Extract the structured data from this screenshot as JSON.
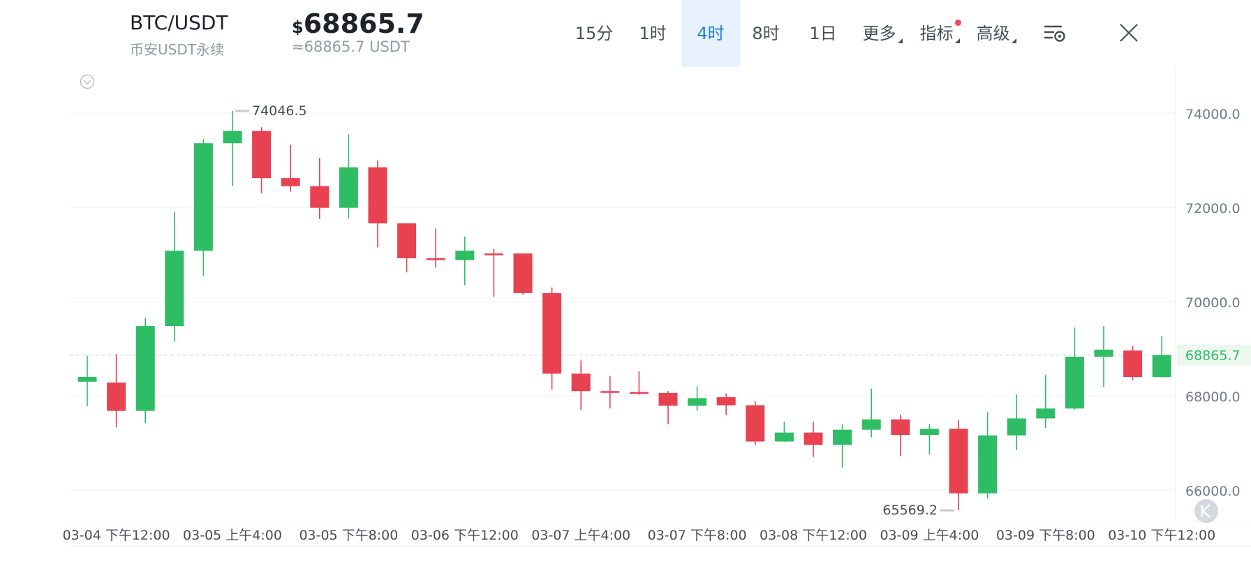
{
  "header": {
    "pair": "BTC/USDT",
    "market": "币安USDT永续",
    "price_currency": "$",
    "price": "68865.7",
    "converted": "≈68865.7 USDT"
  },
  "timeframes": [
    {
      "label": "15分",
      "active": false,
      "dropdown": false
    },
    {
      "label": "1时",
      "active": false,
      "dropdown": false
    },
    {
      "label": "4时",
      "active": true,
      "dropdown": false
    },
    {
      "label": "8时",
      "active": false,
      "dropdown": false
    },
    {
      "label": "1日",
      "active": false,
      "dropdown": false
    },
    {
      "label": "更多",
      "active": false,
      "dropdown": true
    },
    {
      "label": "指标",
      "active": false,
      "dropdown": true,
      "badge": true
    },
    {
      "label": "高级",
      "active": false,
      "dropdown": true
    }
  ],
  "icons": {
    "settings": "settings-list-icon",
    "close": "close-icon",
    "collapse": "chevron-down-circle-icon",
    "logo": "k-logo-icon"
  },
  "colors": {
    "up": "#2ebd65",
    "down": "#e84150",
    "accent": "#1e7ee5",
    "last_price": "#2ebd65"
  },
  "chart_data": {
    "type": "candlestick",
    "interval": "4时",
    "y_ticks": [
      "74000.0",
      "72000.0",
      "70000.0",
      "68000.0",
      "66000.0"
    ],
    "ylim": [
      65300,
      74900
    ],
    "x_labels": [
      "03-04 下午12:00",
      "03-05 上午4:00",
      "03-05 下午8:00",
      "03-06 下午12:00",
      "03-07 上午4:00",
      "03-07 下午8:00",
      "03-08 下午12:00",
      "03-09 上午4:00",
      "03-09 下午8:00",
      "03-10 下午12:00"
    ],
    "x_label_candle_index": [
      1,
      5,
      9,
      13,
      17,
      21,
      25,
      29,
      33,
      37
    ],
    "last_price": "68865.7",
    "high_label": "74046.5",
    "low_label": "65569.2",
    "high_index": 5,
    "low_index": 30,
    "candles": [
      {
        "o": 68300,
        "h": 68850,
        "l": 67780,
        "c": 68400
      },
      {
        "o": 68280,
        "h": 68880,
        "l": 67330,
        "c": 67680
      },
      {
        "o": 67680,
        "h": 69650,
        "l": 67420,
        "c": 69480
      },
      {
        "o": 69480,
        "h": 71900,
        "l": 69150,
        "c": 71080
      },
      {
        "o": 71080,
        "h": 73450,
        "l": 70550,
        "c": 73360
      },
      {
        "o": 73360,
        "h": 74046.5,
        "l": 72450,
        "c": 73620
      },
      {
        "o": 73620,
        "h": 73700,
        "l": 72300,
        "c": 72620
      },
      {
        "o": 72620,
        "h": 73330,
        "l": 72330,
        "c": 72450
      },
      {
        "o": 72450,
        "h": 73050,
        "l": 71750,
        "c": 71990
      },
      {
        "o": 71990,
        "h": 73550,
        "l": 71770,
        "c": 72850
      },
      {
        "o": 72850,
        "h": 73000,
        "l": 71150,
        "c": 71660
      },
      {
        "o": 71660,
        "h": 71660,
        "l": 70620,
        "c": 70920
      },
      {
        "o": 70920,
        "h": 71550,
        "l": 70720,
        "c": 70880
      },
      {
        "o": 70880,
        "h": 71380,
        "l": 70350,
        "c": 71080
      },
      {
        "o": 71020,
        "h": 71120,
        "l": 70100,
        "c": 71000
      },
      {
        "o": 71020,
        "h": 71020,
        "l": 70150,
        "c": 70180
      },
      {
        "o": 70180,
        "h": 70300,
        "l": 68130,
        "c": 68470
      },
      {
        "o": 68470,
        "h": 68750,
        "l": 67700,
        "c": 68100
      },
      {
        "o": 68100,
        "h": 68420,
        "l": 67730,
        "c": 68080
      },
      {
        "o": 68080,
        "h": 68520,
        "l": 68020,
        "c": 68060
      },
      {
        "o": 68060,
        "h": 68100,
        "l": 67400,
        "c": 67790
      },
      {
        "o": 67790,
        "h": 68200,
        "l": 67680,
        "c": 67950
      },
      {
        "o": 67970,
        "h": 68050,
        "l": 67590,
        "c": 67800
      },
      {
        "o": 67800,
        "h": 67880,
        "l": 66960,
        "c": 67030
      },
      {
        "o": 67030,
        "h": 67450,
        "l": 67020,
        "c": 67220
      },
      {
        "o": 67220,
        "h": 67450,
        "l": 66700,
        "c": 66960
      },
      {
        "o": 66960,
        "h": 67400,
        "l": 66480,
        "c": 67280
      },
      {
        "o": 67280,
        "h": 68150,
        "l": 67120,
        "c": 67500
      },
      {
        "o": 67500,
        "h": 67600,
        "l": 66720,
        "c": 67170
      },
      {
        "o": 67170,
        "h": 67400,
        "l": 66750,
        "c": 67300
      },
      {
        "o": 67300,
        "h": 67480,
        "l": 65569.2,
        "c": 65930
      },
      {
        "o": 65930,
        "h": 67650,
        "l": 65820,
        "c": 67160
      },
      {
        "o": 67160,
        "h": 68030,
        "l": 66850,
        "c": 67520
      },
      {
        "o": 67520,
        "h": 68440,
        "l": 67320,
        "c": 67730
      },
      {
        "o": 67730,
        "h": 69450,
        "l": 67700,
        "c": 68830
      },
      {
        "o": 68830,
        "h": 69480,
        "l": 68180,
        "c": 68980
      },
      {
        "o": 68960,
        "h": 69060,
        "l": 68330,
        "c": 68400
      },
      {
        "o": 68400,
        "h": 69270,
        "l": 68380,
        "c": 68865.7
      }
    ]
  }
}
